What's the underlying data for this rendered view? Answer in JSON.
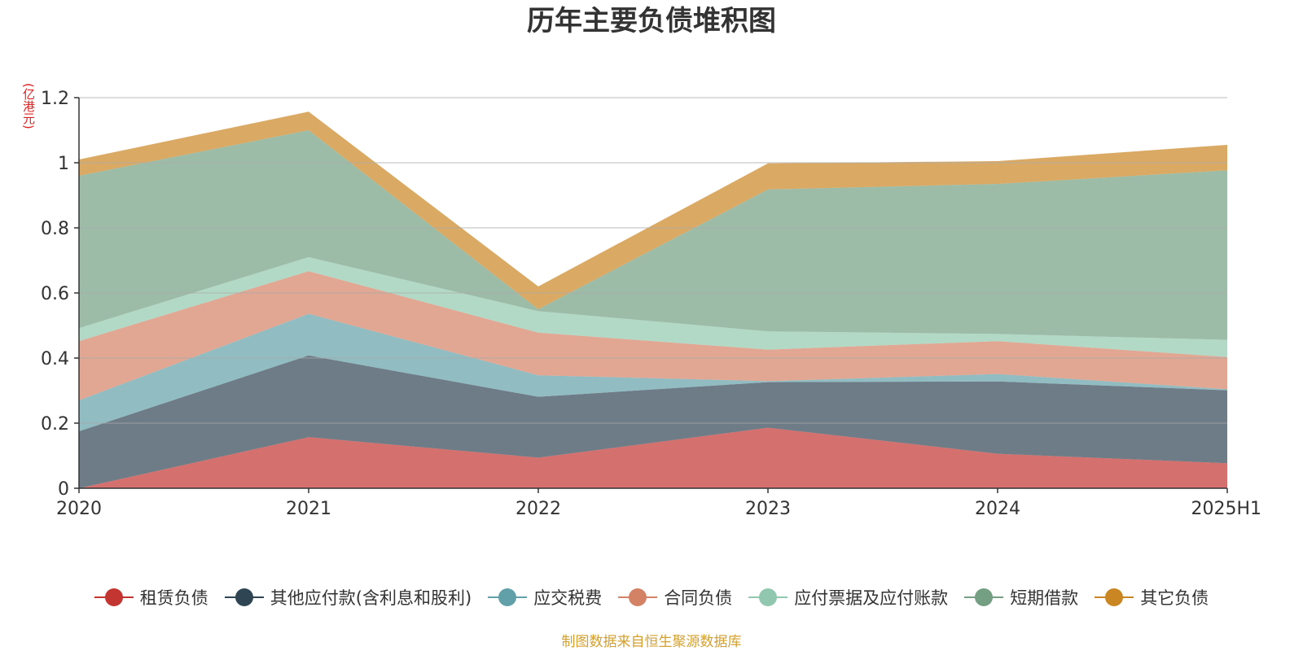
{
  "chart_data": {
    "type": "area",
    "stacked": true,
    "title": "历年主要负债堆积图",
    "unit": "(亿港元)",
    "categories": [
      "2020",
      "2021",
      "2022",
      "2023",
      "2024",
      "2025H1"
    ],
    "ylim": [
      0,
      1.2
    ],
    "yticks": [
      0,
      0.2,
      0.4,
      0.6,
      0.8,
      1,
      1.2
    ],
    "ytick_labels": [
      "0",
      "0.2",
      "0.4",
      "0.6",
      "0.8",
      "1",
      "1.2"
    ],
    "grid": true,
    "legend_position": "bottom",
    "series": [
      {
        "name": "租赁负债",
        "color": "#c23531",
        "values": [
          0.0,
          0.157,
          0.094,
          0.186,
          0.106,
          0.077
        ]
      },
      {
        "name": "其他应付款(含利息和股利)",
        "color": "#2f4554",
        "values": [
          0.175,
          0.251,
          0.187,
          0.14,
          0.222,
          0.224
        ]
      },
      {
        "name": "应交税费",
        "color": "#61a0a8",
        "values": [
          0.095,
          0.128,
          0.066,
          0.003,
          0.023,
          0.003
        ]
      },
      {
        "name": "合同负债",
        "color": "#d48265",
        "values": [
          0.182,
          0.131,
          0.131,
          0.097,
          0.101,
          0.099
        ]
      },
      {
        "name": "应付票据及应付账款",
        "color": "#91c7ae",
        "values": [
          0.04,
          0.043,
          0.066,
          0.056,
          0.022,
          0.053
        ]
      },
      {
        "name": "短期借款",
        "color": "#749f83",
        "values": [
          0.468,
          0.39,
          0.006,
          0.436,
          0.461,
          0.521
        ]
      },
      {
        "name": "其它负债",
        "color": "#ca8622",
        "values": [
          0.05,
          0.057,
          0.07,
          0.08,
          0.07,
          0.078
        ]
      }
    ]
  },
  "source_note": "制图数据来自恒生聚源数据库"
}
